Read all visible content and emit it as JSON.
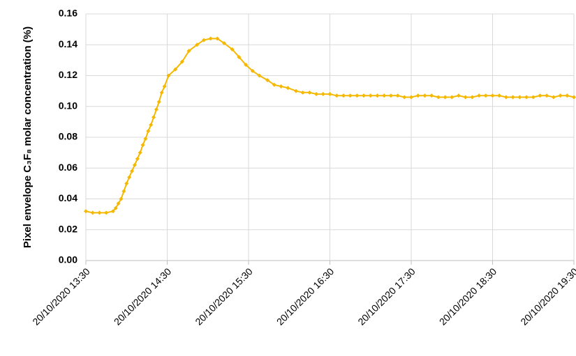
{
  "chart_data": {
    "type": "line",
    "ylabel": "Pixel envelope C₃F₈ molar concentration (%)",
    "x": [
      "20/10/2020 13:30",
      "20/10/2020 13:35",
      "20/10/2020 13:40",
      "20/10/2020 13:45",
      "20/10/2020 13:50",
      "20/10/2020 13:52",
      "20/10/2020 13:54",
      "20/10/2020 13:56",
      "20/10/2020 13:58",
      "20/10/2020 14:00",
      "20/10/2020 14:02",
      "20/10/2020 14:04",
      "20/10/2020 14:06",
      "20/10/2020 14:08",
      "20/10/2020 14:10",
      "20/10/2020 14:12",
      "20/10/2020 14:14",
      "20/10/2020 14:16",
      "20/10/2020 14:18",
      "20/10/2020 14:20",
      "20/10/2020 14:22",
      "20/10/2020 14:24",
      "20/10/2020 14:26",
      "20/10/2020 14:28",
      "20/10/2020 14:31",
      "20/10/2020 14:36",
      "20/10/2020 14:41",
      "20/10/2020 14:46",
      "20/10/2020 14:52",
      "20/10/2020 14:57",
      "20/10/2020 15:02",
      "20/10/2020 15:07",
      "20/10/2020 15:12",
      "20/10/2020 15:18",
      "20/10/2020 15:23",
      "20/10/2020 15:28",
      "20/10/2020 15:33",
      "20/10/2020 15:38",
      "20/10/2020 15:44",
      "20/10/2020 15:49",
      "20/10/2020 15:54",
      "20/10/2020 15:59",
      "20/10/2020 16:05",
      "20/10/2020 16:10",
      "20/10/2020 16:15",
      "20/10/2020 16:20",
      "20/10/2020 16:25",
      "20/10/2020 16:30",
      "20/10/2020 16:35",
      "20/10/2020 16:40",
      "20/10/2020 16:45",
      "20/10/2020 16:50",
      "20/10/2020 16:55",
      "20/10/2020 17:00",
      "20/10/2020 17:05",
      "20/10/2020 17:10",
      "20/10/2020 17:15",
      "20/10/2020 17:20",
      "20/10/2020 17:25",
      "20/10/2020 17:30",
      "20/10/2020 17:35",
      "20/10/2020 17:40",
      "20/10/2020 17:45",
      "20/10/2020 17:50",
      "20/10/2020 17:55",
      "20/10/2020 18:00",
      "20/10/2020 18:05",
      "20/10/2020 18:10",
      "20/10/2020 18:15",
      "20/10/2020 18:20",
      "20/10/2020 18:25",
      "20/10/2020 18:30",
      "20/10/2020 18:35",
      "20/10/2020 18:40",
      "20/10/2020 18:45",
      "20/10/2020 18:50",
      "20/10/2020 18:55",
      "20/10/2020 19:00",
      "20/10/2020 19:05",
      "20/10/2020 19:10",
      "20/10/2020 19:15",
      "20/10/2020 19:20",
      "20/10/2020 19:25",
      "20/10/2020 19:30"
    ],
    "series": [
      {
        "name": "C₃F₈",
        "color": "#f5b800",
        "values": [
          0.032,
          0.031,
          0.031,
          0.031,
          0.032,
          0.034,
          0.037,
          0.04,
          0.045,
          0.05,
          0.054,
          0.058,
          0.062,
          0.066,
          0.07,
          0.075,
          0.079,
          0.084,
          0.088,
          0.093,
          0.098,
          0.103,
          0.109,
          0.113,
          0.12,
          0.124,
          0.129,
          0.136,
          0.14,
          0.143,
          0.144,
          0.144,
          0.141,
          0.137,
          0.132,
          0.127,
          0.123,
          0.12,
          0.117,
          0.114,
          0.113,
          0.112,
          0.11,
          0.109,
          0.109,
          0.108,
          0.108,
          0.108,
          0.107,
          0.107,
          0.107,
          0.107,
          0.107,
          0.107,
          0.107,
          0.107,
          0.107,
          0.107,
          0.106,
          0.106,
          0.107,
          0.107,
          0.107,
          0.106,
          0.106,
          0.106,
          0.107,
          0.106,
          0.106,
          0.107,
          0.107,
          0.107,
          0.107,
          0.106,
          0.106,
          0.106,
          0.106,
          0.106,
          0.107,
          0.107,
          0.106,
          0.107,
          0.107,
          0.106
        ]
      }
    ],
    "xlim": [
      "20/10/2020 13:30",
      "20/10/2020 19:30"
    ],
    "xticks": [
      "20/10/2020 13:30",
      "20/10/2020 14:30",
      "20/10/2020 15:30",
      "20/10/2020 16:30",
      "20/10/2020 17:30",
      "20/10/2020 18:30",
      "20/10/2020 19:30"
    ],
    "ylim": [
      0,
      0.16
    ],
    "yticks": [
      {
        "value": 0,
        "label": "0.00"
      },
      {
        "value": 0.02,
        "label": "0.02"
      },
      {
        "value": 0.04,
        "label": "0.04"
      },
      {
        "value": 0.06,
        "label": "0.06"
      },
      {
        "value": 0.08,
        "label": "0.08"
      },
      {
        "value": 0.1,
        "label": "0.10"
      },
      {
        "value": 0.12,
        "label": "0.12"
      },
      {
        "value": 0.14,
        "label": "0.14"
      },
      {
        "value": 0.16,
        "label": "0.16"
      }
    ],
    "grid": true
  }
}
